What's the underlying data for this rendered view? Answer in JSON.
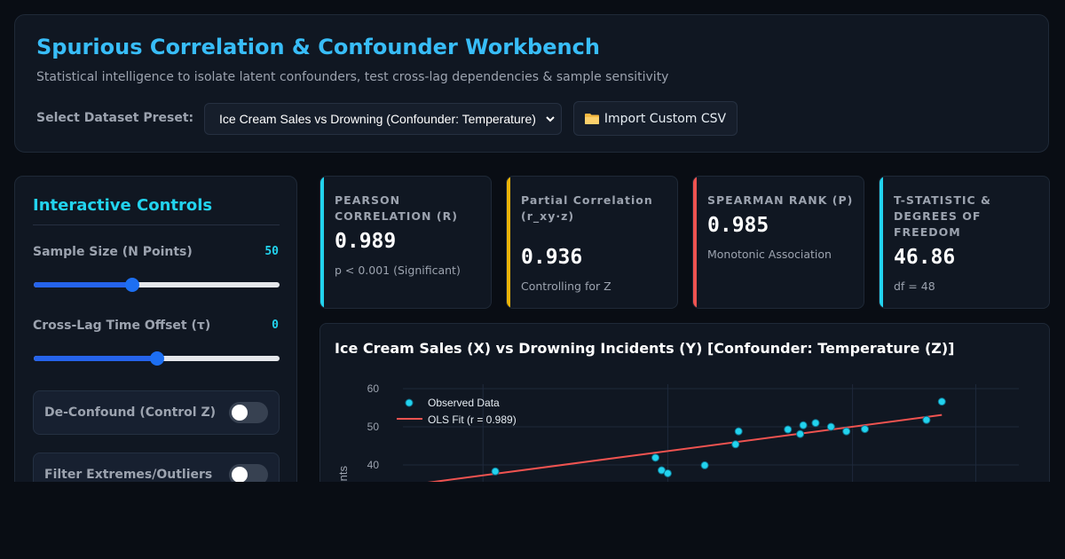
{
  "header": {
    "title": "Spurious Correlation & Confounder Workbench",
    "subtitle": "Statistical intelligence to isolate latent confounders, test cross-lag dependencies & sample sensitivity",
    "preset_label": "Select Dataset Preset:",
    "preset_value": "Ice Cream Sales vs Drowning (Confounder: Temperature)",
    "import_label": "Import Custom CSV",
    "import_icon": "folder-icon"
  },
  "controls": {
    "title": "Interactive Controls",
    "sample_size": {
      "label": "Sample Size (N Points)",
      "value": "50",
      "fraction": 0.4
    },
    "cross_lag": {
      "label": "Cross-Lag Time Offset (τ)",
      "value": "0",
      "fraction": 0.5
    },
    "deconfound": {
      "label": "De-Confound (Control Z)",
      "on": false
    },
    "filter_outliers": {
      "label": "Filter Extremes/Outliers",
      "on": false
    }
  },
  "stats": [
    {
      "label": "Pearson Correlation (r)",
      "value": "0.989",
      "sub": "p < 0.001 (Significant)",
      "accent": "#22d3ee"
    },
    {
      "label": "Partial Correlation (r_xy·z)",
      "value": "0.936",
      "sub": "Controlling for Z",
      "accent": "#eab308"
    },
    {
      "label": "Spearman Rank (ρ)",
      "value": "0.985",
      "sub": "Monotonic Association",
      "accent": "#ef5350"
    },
    {
      "label": "T-Statistic & Degrees of Freedom",
      "value": "46.86",
      "sub": "df = 48",
      "accent": "#22d3ee"
    }
  ],
  "chart": {
    "title": "Ice Cream Sales (X) vs Drowning Incidents (Y) [Confounder: Temperature (Z)]"
  },
  "chart_data": {
    "type": "scatter",
    "title": "Ice Cream Sales (X) vs Drowning Incidents (Y) [Confounder: Temperature (Z)]",
    "ylabel": "ents",
    "yticks": [
      40,
      50,
      60
    ],
    "ylim": [
      40,
      60
    ],
    "series": [
      {
        "name": "Observed Data",
        "kind": "scatter",
        "color": "#22d3ee",
        "points": [
          [
            0.15,
            38.3
          ],
          [
            0.41,
            41.9
          ],
          [
            0.42,
            38.6
          ],
          [
            0.43,
            37.8
          ],
          [
            0.49,
            39.9
          ],
          [
            0.54,
            45.4
          ],
          [
            0.545,
            48.8
          ],
          [
            0.625,
            49.3
          ],
          [
            0.645,
            48.1
          ],
          [
            0.65,
            50.4
          ],
          [
            0.67,
            51.0
          ],
          [
            0.695,
            50.0
          ],
          [
            0.72,
            48.8
          ],
          [
            0.75,
            49.4
          ],
          [
            0.85,
            51.8
          ],
          [
            0.875,
            56.6
          ]
        ]
      },
      {
        "name": "OLS Fit (r = 0.989)",
        "kind": "line",
        "color": "#ef5350",
        "points": [
          [
            0.0,
            34.5
          ],
          [
            0.875,
            53.1
          ]
        ]
      }
    ]
  }
}
